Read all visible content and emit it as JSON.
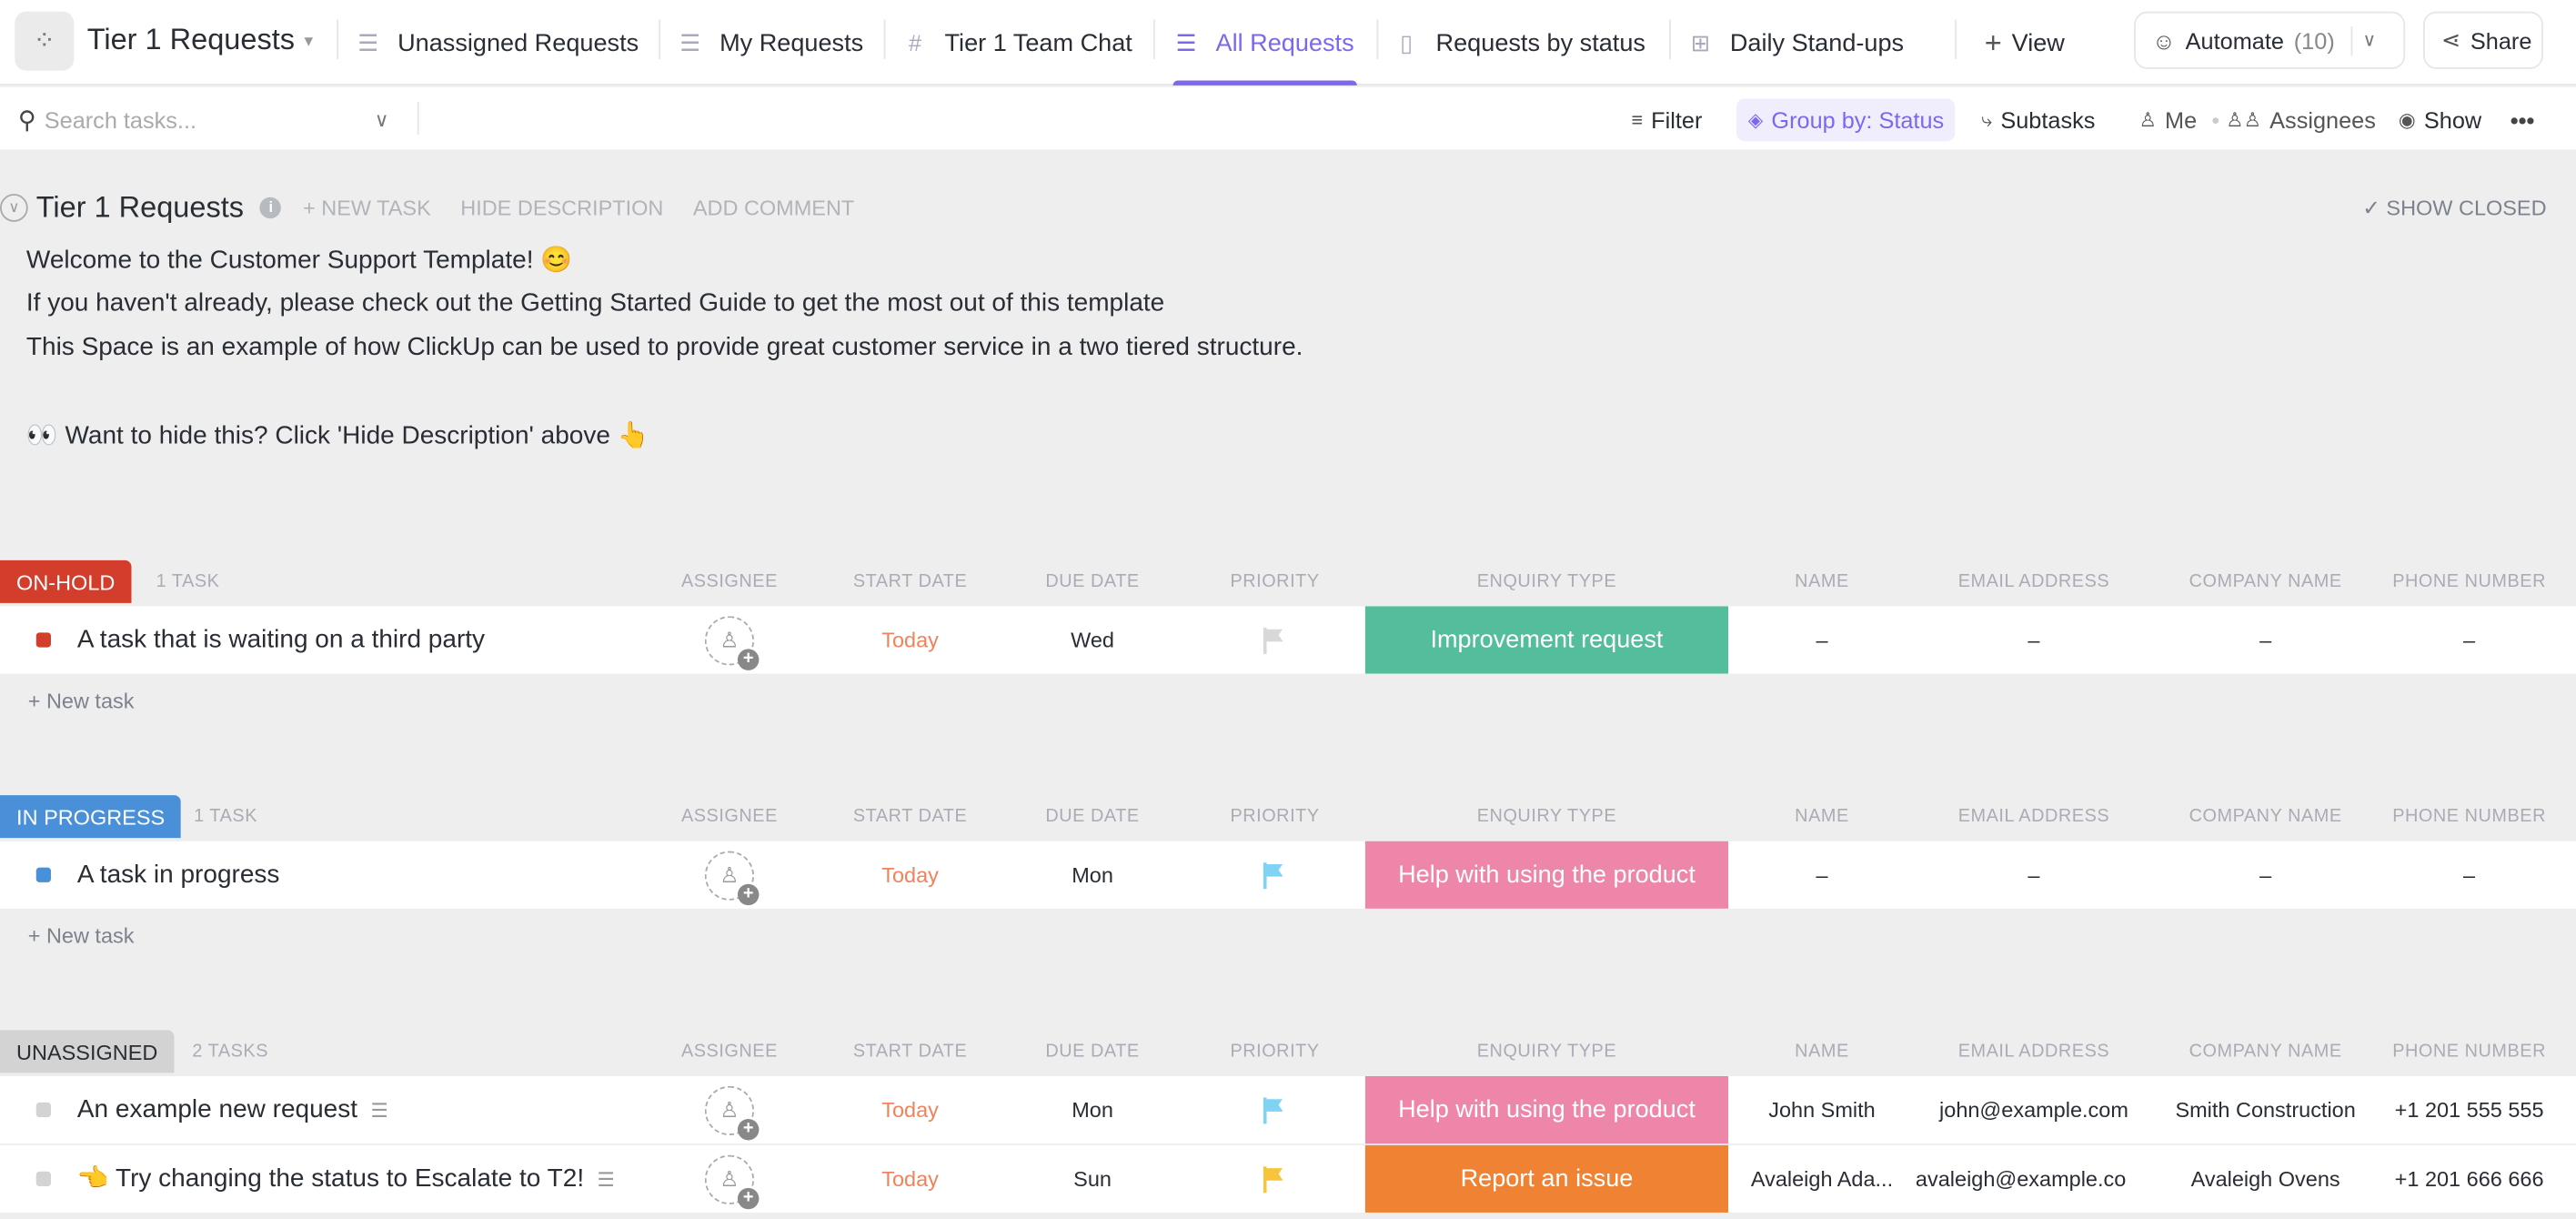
{
  "header": {
    "space_title": "Tier 1 Requests",
    "tabs": [
      {
        "label": "Unassigned Requests",
        "icon": "list-icon"
      },
      {
        "label": "My Requests",
        "icon": "list-icon"
      },
      {
        "label": "Tier 1 Team Chat",
        "icon": "hash-icon"
      },
      {
        "label": "All Requests",
        "icon": "list-icon",
        "active": true
      },
      {
        "label": "Requests by status",
        "icon": "board-icon"
      },
      {
        "label": "Daily Stand-ups",
        "icon": "grid-icon"
      }
    ],
    "add_view": "View",
    "automate": "Automate",
    "automate_count": "(10)",
    "share": "Share"
  },
  "toolbar": {
    "search_placeholder": "Search tasks...",
    "filter": "Filter",
    "group_by": "Group by: Status",
    "subtasks": "Subtasks",
    "me": "Me",
    "assignees": "Assignees",
    "show": "Show"
  },
  "list": {
    "title": "Tier 1 Requests",
    "new_task": "+ NEW TASK",
    "hide_description": "HIDE DESCRIPTION",
    "add_comment": "ADD COMMENT",
    "show_closed": "SHOW CLOSED",
    "description": [
      "Welcome to the Customer Support Template! 😊",
      "If you haven't already, please check out the Getting Started Guide to get the most out of this template",
      "This Space is an example of how ClickUp can be used to provide great customer service in a two tiered structure.",
      "👀  Want to hide this? Click 'Hide Description' above 👆"
    ]
  },
  "columns": {
    "assignee": "ASSIGNEE",
    "start": "START DATE",
    "due": "DUE DATE",
    "priority": "PRIORITY",
    "enquiry": "ENQUIRY TYPE",
    "name": "NAME",
    "email": "EMAIL ADDRESS",
    "company": "COMPANY NAME",
    "phone": "PHONE NUMBER"
  },
  "new_task_label": "+ New task",
  "groups": [
    {
      "status": "ON-HOLD",
      "color": "#d33d2b",
      "count": "1 TASK",
      "tasks": [
        {
          "name": "A task that is waiting on a third party",
          "start": "Today",
          "due": "Wed",
          "priority_color": "#d8d8d8",
          "enquiry": "Improvement request",
          "enquiry_color": "#53bd9c",
          "contact_name": "–",
          "email": "–",
          "company": "–",
          "phone": "–"
        }
      ]
    },
    {
      "status": "IN PROGRESS",
      "color": "#4a90d9",
      "count": "1 TASK",
      "tasks": [
        {
          "name": "A task in progress",
          "start": "Today",
          "due": "Mon",
          "priority_color": "#7fd3f5",
          "enquiry": "Help with using the product",
          "enquiry_color": "#ee86aa",
          "contact_name": "–",
          "email": "–",
          "company": "–",
          "phone": "–"
        }
      ]
    },
    {
      "status": "UNASSIGNED",
      "color": "#d3d3d3",
      "count": "2 TASKS",
      "tasks": [
        {
          "name": "An example new request",
          "start": "Today",
          "due": "Mon",
          "priority_color": "#7fd3f5",
          "enquiry": "Help with using the product",
          "enquiry_color": "#ee86aa",
          "contact_name": "John Smith",
          "email": "john@example.com",
          "company": "Smith Construction",
          "phone": "+1 201 555 555"
        },
        {
          "name": "👈 Try changing the status to Escalate to T2!",
          "start": "Today",
          "due": "Sun",
          "priority_color": "#f7c53b",
          "enquiry": "Report an issue",
          "enquiry_color": "#f08233",
          "contact_name": "Avaleigh Ada...",
          "email": "avaleigh@example.co",
          "company": "Avaleigh Ovens",
          "phone": "+1 201 666 666"
        }
      ]
    }
  ]
}
